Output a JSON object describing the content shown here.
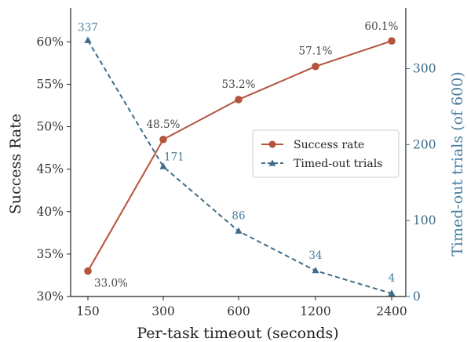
{
  "chart_data": {
    "type": "line",
    "xlabel": "Per-task timeout (seconds)",
    "categories": [
      "150",
      "300",
      "600",
      "1200",
      "2400"
    ],
    "y_left": {
      "label": "Success Rate",
      "ylim": [
        30,
        64
      ],
      "ticks": [
        30,
        35,
        40,
        45,
        50,
        55,
        60
      ],
      "tick_labels": [
        "30%",
        "35%",
        "40%",
        "45%",
        "50%",
        "55%",
        "60%"
      ]
    },
    "y_right": {
      "label": "Timed-out trials (of 600)",
      "ylim": [
        0,
        380
      ],
      "ticks": [
        0,
        100,
        200,
        300
      ],
      "tick_labels": [
        "0",
        "100",
        "200",
        "300"
      ]
    },
    "series": [
      {
        "name": "Success rate",
        "axis": "left",
        "values": [
          33.0,
          48.5,
          53.2,
          57.1,
          60.1
        ],
        "labels": [
          "33.0%",
          "48.5%",
          "53.2%",
          "57.1%",
          "60.1%"
        ],
        "color": "#b5533c",
        "style": "solid",
        "marker": "circle"
      },
      {
        "name": "Timed-out trials",
        "axis": "right",
        "values": [
          337,
          171,
          86,
          34,
          4
        ],
        "labels": [
          "337",
          "171",
          "86",
          "34",
          "4"
        ],
        "color": "#3f6c8a",
        "style": "dashed",
        "marker": "triangle"
      }
    ],
    "legend": "center-right",
    "grid": false
  }
}
